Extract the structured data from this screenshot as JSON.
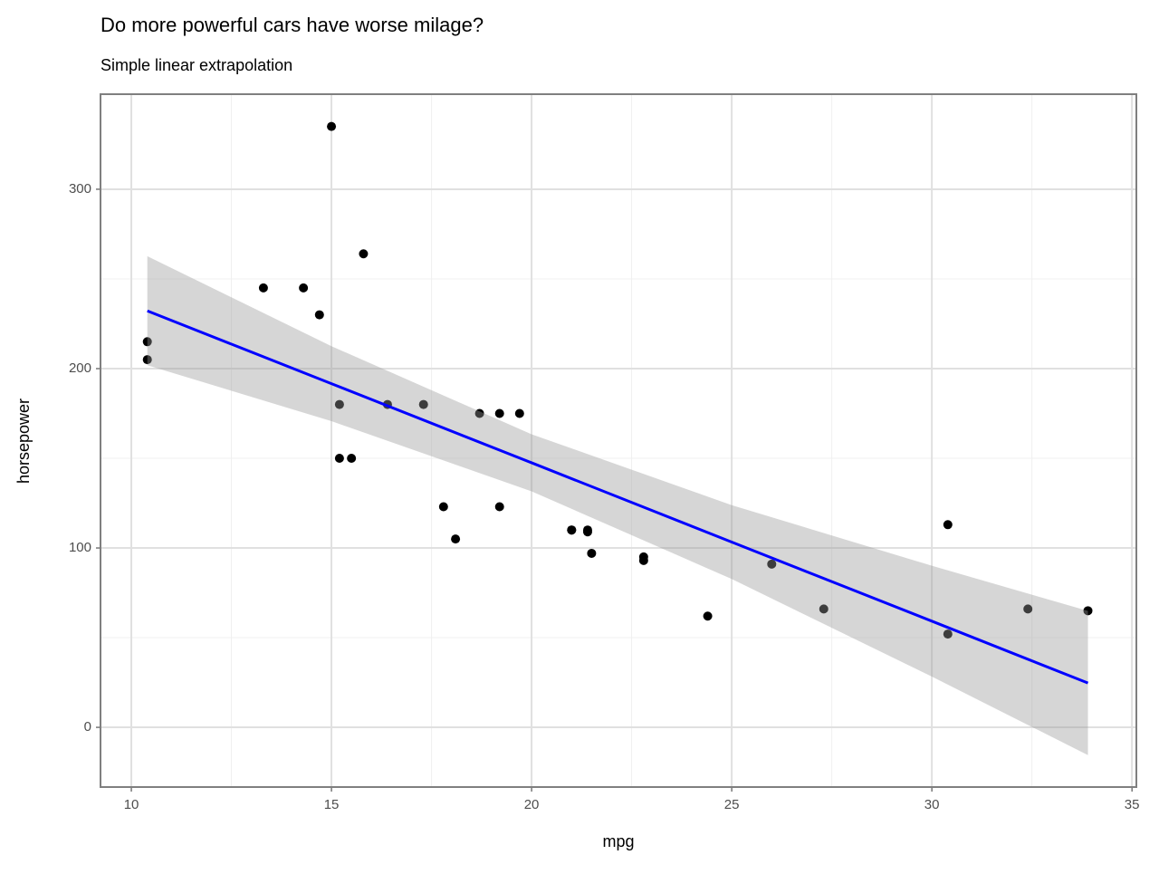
{
  "chart_data": {
    "type": "scatter",
    "title": "Do more powerful cars have worse milage?",
    "subtitle": "Simple linear extrapolation",
    "xlabel": "mpg",
    "ylabel": "horsepower",
    "x": [
      21.0,
      21.0,
      22.8,
      21.4,
      18.7,
      18.1,
      14.3,
      24.4,
      22.8,
      19.2,
      17.8,
      16.4,
      17.3,
      15.2,
      10.4,
      10.4,
      14.7,
      32.4,
      30.4,
      33.9,
      21.5,
      15.5,
      15.2,
      13.3,
      19.2,
      27.3,
      26.0,
      30.4,
      15.8,
      19.7,
      15.0,
      21.4
    ],
    "values": [
      110,
      110,
      93,
      110,
      175,
      105,
      245,
      62,
      95,
      123,
      123,
      180,
      180,
      180,
      205,
      215,
      230,
      66,
      52,
      65,
      97,
      150,
      150,
      245,
      175,
      66,
      91,
      113,
      264,
      175,
      335,
      109
    ],
    "color": "#000000",
    "fit": {
      "x": [
        10.4,
        15,
        20,
        25,
        30,
        33.9
      ],
      "values": [
        232.2,
        191.6,
        147.5,
        103.3,
        59.2,
        24.7
      ],
      "lower": [
        201.9,
        170.7,
        131.6,
        82.7,
        28.3,
        -15.5
      ],
      "upper": [
        262.7,
        212.5,
        163.4,
        123.9,
        90.1,
        64.9
      ],
      "color": "#0000ff",
      "band_color": "#999999"
    },
    "xlim": [
      9.23,
      35.11
    ],
    "ylim": [
      -33.3,
      353
    ],
    "xticks": [
      10,
      15,
      20,
      25,
      30,
      35
    ],
    "yticks": [
      0,
      100,
      200,
      300
    ],
    "minor_xticks": [
      12.5,
      17.5,
      22.5,
      27.5,
      32.5
    ],
    "minor_yticks": [
      50,
      150,
      250
    ],
    "grid": true
  }
}
